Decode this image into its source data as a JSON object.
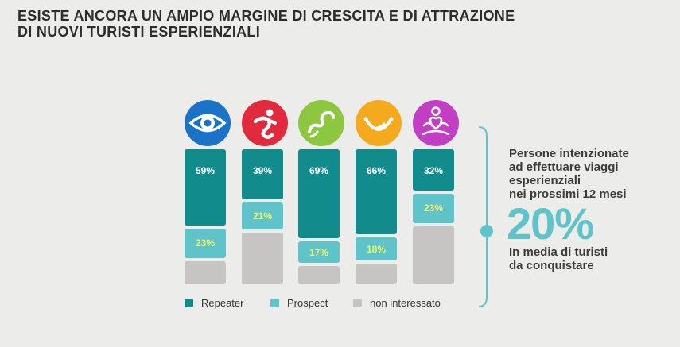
{
  "title": {
    "line1": "ESISTE ANCORA UN AMPIO MARGINE DI CRESCITA E DI ATTRAZIONE",
    "line2": "DI NUOVI TURISTI ESPERIENZIALI"
  },
  "icons": [
    {
      "name": "eye-icon",
      "color": "#1a73c8"
    },
    {
      "name": "runner-icon",
      "color": "#e12a3e"
    },
    {
      "name": "wave-icon",
      "color": "#8dc63f"
    },
    {
      "name": "smile-icon",
      "color": "#f5a91c"
    },
    {
      "name": "meditation-icon",
      "color": "#c23fc4"
    }
  ],
  "chart_data": {
    "type": "bar",
    "stacked": true,
    "categories": [
      "",
      "",
      "",
      "",
      ""
    ],
    "series": [
      {
        "name": "Repeater",
        "color": "#128b8d",
        "values": [
          59,
          39,
          69,
          66,
          32
        ],
        "labels": [
          "59%",
          "39%",
          "69%",
          "66%",
          "32%"
        ]
      },
      {
        "name": "Prospect",
        "color": "#5ec4c9",
        "values": [
          23,
          21,
          17,
          18,
          23
        ],
        "labels": [
          "23%",
          "21%",
          "17%",
          "18%",
          "23%"
        ]
      },
      {
        "name": "non interessato",
        "color": "#c6c5c3",
        "values": [
          18,
          40,
          14,
          16,
          45
        ]
      }
    ],
    "ylim": [
      0,
      100
    ],
    "label_colors": {
      "Repeater": "#ffffff",
      "Prospect": "#f3f06a"
    }
  },
  "legend": {
    "repeater": "Repeater",
    "prospect": "Prospect",
    "non_interessato": "non interessato"
  },
  "side_panel": {
    "line1": "Persone intenzionate",
    "line2": "ad effettuare viaggi",
    "line3": "esperienziali",
    "line4": "nei prossimi 12 mesi",
    "big_number": "20%",
    "sub1": "In media di turisti",
    "sub2": "da conquistare"
  }
}
